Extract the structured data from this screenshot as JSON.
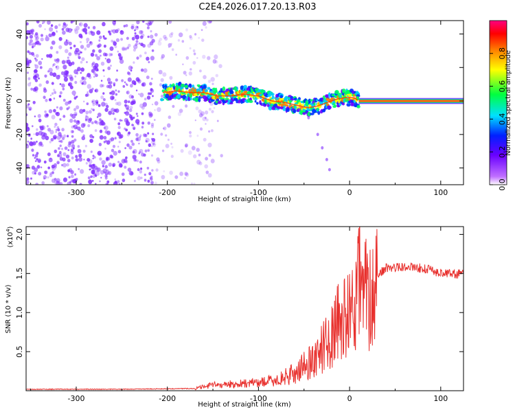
{
  "title": "C2E4.2026.017.20.13.R03",
  "colors": {
    "snr_line": "#e8302d",
    "noise_purple": "#7f2cff",
    "colorbar_stops": [
      "#ffffff",
      "#c070ff",
      "#6a00ff",
      "#0020ff",
      "#00e0ff",
      "#00ff40",
      "#ffff00",
      "#ff8000",
      "#ff0000",
      "#ff0080"
    ]
  },
  "chart_data": [
    {
      "id": "spectrogram",
      "type": "heatmap",
      "xlabel": "Height of straight line (km)",
      "ylabel": "Frequency (Hz)",
      "xlim": [
        -355,
        125
      ],
      "ylim": [
        -50,
        48
      ],
      "xticks": [
        -300,
        -200,
        -100,
        0,
        100
      ],
      "yticks": [
        -40,
        -20,
        0,
        20,
        40
      ],
      "xtick_labels": [
        "-300",
        "-200",
        "-100",
        "0",
        "100"
      ],
      "ytick_labels": [
        "-40",
        "-20",
        "0",
        "20",
        "40"
      ],
      "noise_region_x": [
        -355,
        -150
      ],
      "signal_track": {
        "x": [
          -205,
          -190,
          -175,
          -160,
          -145,
          -130,
          -115,
          -100,
          -85,
          -70,
          -55,
          -45,
          -35,
          -25,
          -15,
          -5,
          5,
          10,
          125
        ],
        "freq": [
          5,
          6,
          5,
          5,
          3,
          3,
          4,
          3,
          0,
          -1,
          -3,
          -4,
          -3,
          -1,
          1,
          2,
          2,
          0,
          0
        ]
      },
      "branch": {
        "x": [
          -55,
          -45,
          -35,
          -30,
          -25,
          -22
        ],
        "freq": [
          -5,
          -10,
          -20,
          -28,
          -35,
          -41
        ]
      },
      "colorbar": {
        "label": "Normalized spectral amplitude",
        "range": [
          0,
          1
        ],
        "ticks": [
          0.0,
          0.2,
          0.4,
          0.6,
          0.8
        ],
        "tick_labels": [
          "0.0",
          "0.2",
          "0.4",
          "0.6",
          "0.8"
        ]
      }
    },
    {
      "id": "snr",
      "type": "line",
      "xlabel": "Height of straight line (km)",
      "ylabel": "SNR (10 * v/v)",
      "scale_label": "(x10",
      "scale_exp": "4",
      "scale_close": ")",
      "xlim": [
        -355,
        125
      ],
      "ylim": [
        0,
        2.1
      ],
      "xticks": [
        -300,
        -200,
        -100,
        0,
        100
      ],
      "yticks": [
        0.5,
        1.0,
        1.5,
        2.0
      ],
      "xtick_labels": [
        "-300",
        "-200",
        "-100",
        "0",
        "100"
      ],
      "ytick_labels": [
        "0.5",
        "1.0",
        "1.5",
        "2.0"
      ],
      "series": [
        {
          "name": "SNR",
          "x": [
            -355,
            -250,
            -170,
            -150,
            -120,
            -100,
            -80,
            -60,
            -50,
            -40,
            -30,
            -20,
            -10,
            0,
            8,
            10,
            12,
            20,
            30,
            40,
            60,
            80,
            100,
            125
          ],
          "values": [
            0.02,
            0.02,
            0.03,
            0.08,
            0.1,
            0.12,
            0.15,
            0.25,
            0.35,
            0.45,
            0.6,
            0.8,
            1.0,
            1.1,
            1.3,
            2.08,
            1.35,
            1.4,
            1.5,
            1.58,
            1.6,
            1.58,
            1.52,
            1.5
          ],
          "peak": {
            "x": 10,
            "y": 2.08
          }
        }
      ]
    }
  ]
}
